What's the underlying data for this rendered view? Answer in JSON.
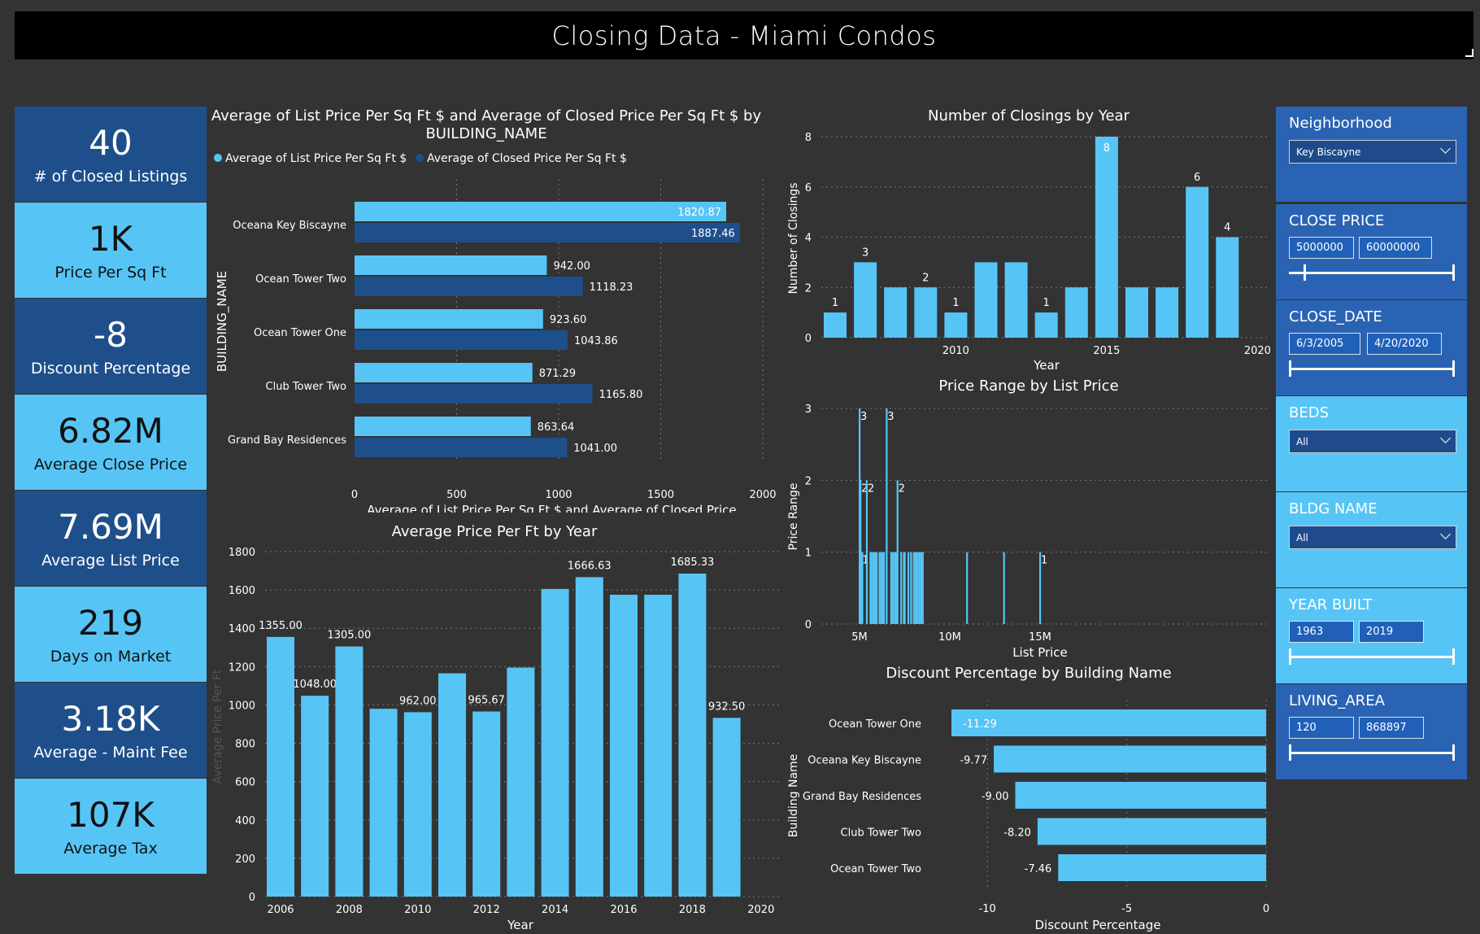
{
  "title": "Closing Data - Miami Condos",
  "kpis": [
    {
      "value": "40",
      "label": "# of Closed Listings"
    },
    {
      "value": "1K",
      "label": "Price Per Sq Ft"
    },
    {
      "value": "-8",
      "label": "Discount Percentage"
    },
    {
      "value": "6.82M",
      "label": "Average Close Price"
    },
    {
      "value": "7.69M",
      "label": "Average List Price"
    },
    {
      "value": "219",
      "label": "Days on Market"
    },
    {
      "value": "3.18K",
      "label": "Average - Maint Fee"
    },
    {
      "value": "107K",
      "label": "Average Tax"
    }
  ],
  "slicers": {
    "neighborhood": {
      "title": "Neighborhood",
      "value": "Key Biscayne"
    },
    "close_price": {
      "title": "CLOSE PRICE",
      "min": "5000000",
      "max": "60000000"
    },
    "close_date": {
      "title": "CLOSE_DATE",
      "min": "6/3/2005",
      "max": "4/20/2020"
    },
    "beds": {
      "title": "BEDS",
      "value": "All"
    },
    "bldg_name": {
      "title": "BLDG NAME",
      "value": "All"
    },
    "year_built": {
      "title": "YEAR BUILT",
      "min": "1963",
      "max": "2019"
    },
    "living_area": {
      "title": "LIVING_AREA",
      "min": "120",
      "max": "868897"
    }
  },
  "colors": {
    "light": "#56c5f6",
    "dark": "#1e4f8a",
    "bg": "#333333"
  },
  "chart_data": [
    {
      "type": "bar",
      "orientation": "horizontal",
      "title": "Average of List Price Per Sq Ft $ and Average of Closed Price Per Sq Ft $ by BUILDING_NAME",
      "ylabel": "BUILDING_NAME",
      "xlabel": "Average of List Price Per Sq Ft $ and Average of Closed Price ...",
      "categories": [
        "Oceana Key Biscayne",
        "Ocean Tower Two",
        "Ocean Tower One",
        "Club Tower Two",
        "Grand Bay Residences"
      ],
      "series": [
        {
          "name": "Average of List Price Per Sq Ft $",
          "values": [
            1820.87,
            942.0,
            923.6,
            871.29,
            863.64
          ],
          "labels": [
            "1820.87",
            "942.00",
            "923.60",
            "871.29",
            "863.64"
          ]
        },
        {
          "name": "Average of Closed Price Per Sq Ft $",
          "values": [
            1887.46,
            1118.23,
            1043.86,
            1165.8,
            1041.0
          ],
          "labels": [
            "1887.46",
            "1118.23",
            "1043.86",
            "1165.80",
            "1041.00"
          ]
        }
      ],
      "xlim": [
        0,
        2000
      ],
      "xticks": [
        "0",
        "500",
        "1000",
        "1500",
        "2000"
      ],
      "legend": "top-left"
    },
    {
      "type": "bar",
      "title": "Average Price Per Ft by Year",
      "xlabel": "Year",
      "ylabel": "Average Price Per Ft",
      "x": [
        2006,
        2007,
        2008,
        2009,
        2010,
        2011,
        2012,
        2013,
        2014,
        2015,
        2016,
        2017,
        2018,
        2019
      ],
      "values": [
        1355,
        1048,
        1305,
        980,
        962,
        1165,
        965.67,
        1195,
        1605,
        1666.63,
        1575,
        1575,
        1685.33,
        932.5
      ],
      "labels": [
        "1355.00",
        "1048.00",
        "1305.00",
        "",
        "962.00",
        "",
        "965.67",
        "",
        "",
        "1666.63",
        "",
        "",
        "1685.33",
        "932.50"
      ],
      "ylim": [
        0,
        1800
      ],
      "yticks": [
        "0",
        "200",
        "400",
        "600",
        "800",
        "1000",
        "1200",
        "1400",
        "1600",
        "1800"
      ],
      "xticks": [
        "2006",
        "2008",
        "2010",
        "2012",
        "2014",
        "2016",
        "2018",
        "2020"
      ]
    },
    {
      "type": "bar",
      "title": "Number of Closings by Year",
      "xlabel": "Year",
      "ylabel": "Number of Closings",
      "x": [
        2006,
        2007,
        2008,
        2009,
        2010,
        2011,
        2012,
        2013,
        2014,
        2015,
        2016,
        2017,
        2018,
        2019
      ],
      "values": [
        1,
        3,
        2,
        2,
        1,
        3,
        3,
        1,
        2,
        8,
        2,
        2,
        6,
        4
      ],
      "labels": [
        "1",
        "3",
        "",
        "2",
        "1",
        "",
        "",
        "1",
        "",
        "8",
        "",
        "",
        "6",
        "4"
      ],
      "ylim": [
        0,
        8
      ],
      "yticks": [
        "0",
        "2",
        "4",
        "6",
        "8"
      ],
      "xticks": [
        "2010",
        "2015",
        "2020"
      ]
    },
    {
      "type": "bar",
      "title": "Price Range by List Price",
      "xlabel": "List Price",
      "ylabel": "Price Range",
      "x": [
        5.0,
        5.05,
        5.1,
        5.15,
        5.4,
        5.6,
        5.65,
        5.75,
        5.8,
        5.85,
        5.95,
        6.1,
        6.2,
        6.25,
        6.35,
        6.5,
        6.75,
        6.85,
        6.95,
        7.05,
        7.1,
        7.3,
        7.45,
        7.5,
        7.7,
        7.85,
        8.0,
        8.1,
        8.2,
        8.3,
        8.35,
        8.45,
        8.5,
        10.95,
        13.0,
        15.0
      ],
      "values": [
        3,
        2,
        1,
        1,
        2,
        1,
        1,
        1,
        1,
        1,
        1,
        1,
        1,
        1,
        1,
        3,
        1,
        1,
        1,
        1,
        2,
        1,
        1,
        1,
        1,
        1,
        1,
        1,
        1,
        1,
        1,
        1,
        1,
        1,
        1,
        1
      ],
      "labels": [
        "3",
        "2",
        "1",
        "",
        "2",
        "",
        "",
        "",
        "",
        "",
        "",
        "",
        "",
        "",
        "",
        "3",
        "1",
        "",
        "",
        "",
        "2",
        "",
        "",
        "",
        "",
        "",
        "",
        "",
        "",
        "",
        "",
        "",
        "",
        "",
        "",
        "1"
      ],
      "ylim": [
        0,
        3
      ],
      "yticks": [
        "0",
        "1",
        "2",
        "3"
      ],
      "xticks": [
        "5M",
        "10M",
        "15M"
      ]
    },
    {
      "type": "bar",
      "orientation": "horizontal",
      "title": "Discount Percentage by Building Name",
      "xlabel": "Discount Percentage",
      "ylabel": "Building Name",
      "categories": [
        "Ocean Tower One",
        "Oceana Key Biscayne",
        "Grand Bay Residences",
        "Club Tower Two",
        "Ocean Tower Two"
      ],
      "values": [
        -11.29,
        -9.77,
        -9.0,
        -8.2,
        -7.46
      ],
      "labels": [
        "-11.29",
        "-9.77",
        "-9.00",
        "-8.20",
        "-7.46"
      ],
      "xlim": [
        -11.29,
        0
      ],
      "xticks": [
        "-10",
        "-5",
        "0"
      ]
    }
  ]
}
